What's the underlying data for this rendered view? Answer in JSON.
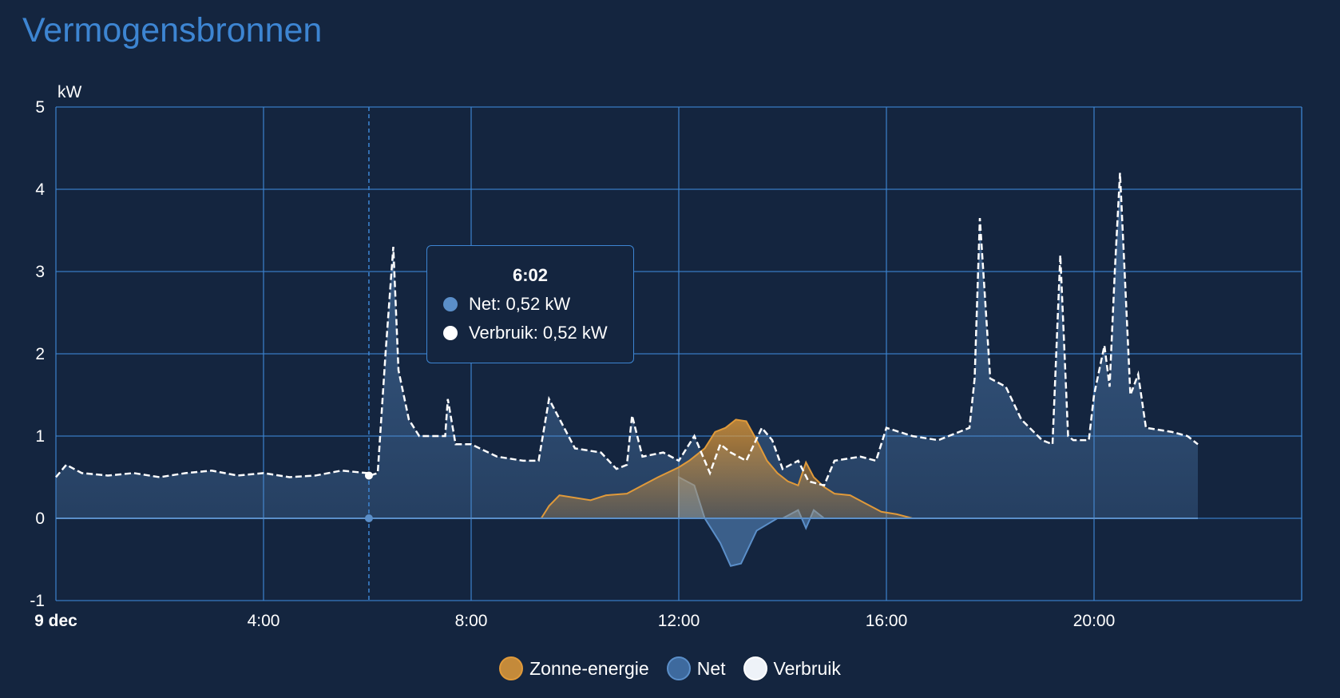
{
  "header": {
    "title": "Vermogensbronnen"
  },
  "colors": {
    "background": "#14253f",
    "grid": "#3d85d2",
    "net": "#5b8fc9",
    "solar": "#e09a3a",
    "consumption": "#ffffff"
  },
  "tooltip": {
    "time": "6:02",
    "rows": [
      {
        "label": "Net: 0,52 kW",
        "color": "#5b8fc9"
      },
      {
        "label": "Verbruik: 0,52 kW",
        "color": "#ffffff"
      }
    ]
  },
  "legend": [
    {
      "label": "Zonne-energie",
      "color": "#e09a3a"
    },
    {
      "label": "Net",
      "color": "#5b8fc9"
    },
    {
      "label": "Verbruik",
      "color": "#ffffff"
    }
  ],
  "chart_data": {
    "type": "area",
    "title": "Vermogensbronnen",
    "ylabel": "kW",
    "xlabel": "",
    "ylim": [
      -1,
      5
    ],
    "xlim": [
      0,
      24
    ],
    "yticks": [
      "5",
      "4",
      "3",
      "2",
      "1",
      "0",
      "-1"
    ],
    "ytick_values": [
      5,
      4,
      3,
      2,
      1,
      0,
      -1
    ],
    "xticks": [
      "9 dec",
      "4:00",
      "8:00",
      "12:00",
      "16:00",
      "20:00"
    ],
    "xtick_values": [
      0,
      4,
      8,
      12,
      16,
      20
    ],
    "grid": true,
    "legend_position": "bottom",
    "crosshair_time": 6.03,
    "series": [
      {
        "name": "Verbruik",
        "x": [
          0,
          0.2,
          0.5,
          1,
          1.5,
          2,
          2.5,
          3,
          3.5,
          4,
          4.5,
          5,
          5.5,
          6,
          6.05,
          6.2,
          6.35,
          6.5,
          6.6,
          6.8,
          7.0,
          7.3,
          7.5,
          7.55,
          7.7,
          8.0,
          8.5,
          9.0,
          9.3,
          9.5,
          10.0,
          10.5,
          10.8,
          11.0,
          11.1,
          11.3,
          11.7,
          12.0,
          12.3,
          12.6,
          12.8,
          13.0,
          13.3,
          13.6,
          13.8,
          14.0,
          14.3,
          14.5,
          14.8,
          15.0,
          15.5,
          15.8,
          16.0,
          16.5,
          17.0,
          17.4,
          17.6,
          17.7,
          17.8,
          18.0,
          18.3,
          18.6,
          19.0,
          19.2,
          19.35,
          19.5,
          19.6,
          19.9,
          20.0,
          20.2,
          20.3,
          20.4,
          20.5,
          20.7,
          20.85,
          21.0,
          21.5,
          21.8,
          22.0
        ],
        "values": [
          0.5,
          0.65,
          0.55,
          0.52,
          0.55,
          0.5,
          0.55,
          0.58,
          0.52,
          0.55,
          0.5,
          0.52,
          0.58,
          0.55,
          0.52,
          0.55,
          2.0,
          3.3,
          1.8,
          1.2,
          1.0,
          1.0,
          1.0,
          1.45,
          0.9,
          0.9,
          0.75,
          0.7,
          0.7,
          1.45,
          0.85,
          0.8,
          0.6,
          0.65,
          1.25,
          0.75,
          0.8,
          0.7,
          1.0,
          0.55,
          0.9,
          0.8,
          0.7,
          1.1,
          0.95,
          0.6,
          0.7,
          0.45,
          0.4,
          0.7,
          0.75,
          0.7,
          1.1,
          1.0,
          0.95,
          1.05,
          1.1,
          1.7,
          3.65,
          1.7,
          1.6,
          1.2,
          0.95,
          0.9,
          3.2,
          1.0,
          0.95,
          0.95,
          1.5,
          2.1,
          1.6,
          3.0,
          4.2,
          1.5,
          1.75,
          1.1,
          1.05,
          1.0,
          0.9
        ]
      },
      {
        "name": "Net",
        "x": [
          0,
          6.35,
          6.5,
          12.0,
          12.3,
          12.5,
          12.8,
          13.0,
          13.2,
          13.5,
          13.9,
          14.0,
          14.3,
          14.45,
          14.6,
          14.8,
          22.0
        ],
        "values": [
          0.5,
          2.0,
          3.3,
          0.5,
          0.4,
          0.0,
          -0.3,
          -0.58,
          -0.55,
          -0.15,
          0.0,
          0.0,
          0.1,
          -0.12,
          0.1,
          0.0,
          0.9
        ]
      },
      {
        "name": "Zonne-energie",
        "x": [
          9.35,
          9.5,
          9.7,
          10.0,
          10.3,
          10.6,
          11.0,
          11.3,
          11.6,
          12.0,
          12.2,
          12.5,
          12.7,
          12.9,
          13.1,
          13.3,
          13.5,
          13.7,
          13.9,
          14.1,
          14.3,
          14.45,
          14.6,
          14.8,
          15.0,
          15.3,
          15.6,
          15.9,
          16.2,
          16.5
        ],
        "values": [
          0.0,
          0.15,
          0.28,
          0.25,
          0.22,
          0.28,
          0.3,
          0.4,
          0.5,
          0.62,
          0.7,
          0.85,
          1.05,
          1.1,
          1.2,
          1.18,
          0.95,
          0.7,
          0.55,
          0.45,
          0.4,
          0.68,
          0.5,
          0.38,
          0.3,
          0.28,
          0.18,
          0.08,
          0.05,
          0.0
        ]
      }
    ]
  }
}
